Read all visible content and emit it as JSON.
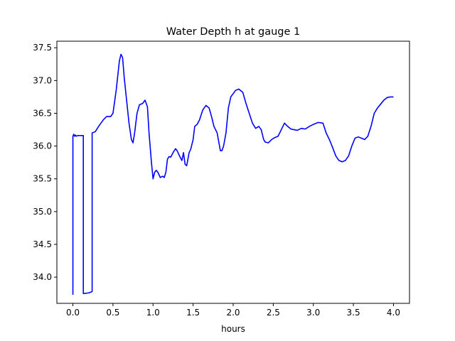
{
  "chart_data": {
    "type": "line",
    "title": "Water Depth h at gauge 1",
    "xlabel": "hours",
    "ylabel": "",
    "xlim": [
      -0.2,
      4.2
    ],
    "ylim": [
      33.6,
      37.6
    ],
    "xticks": [
      0.0,
      0.5,
      1.0,
      1.5,
      2.0,
      2.5,
      3.0,
      3.5,
      4.0
    ],
    "xtick_labels": [
      "0.0",
      "0.5",
      "1.0",
      "1.5",
      "2.0",
      "2.5",
      "3.0",
      "3.5",
      "4.0"
    ],
    "yticks": [
      34.0,
      34.5,
      35.0,
      35.5,
      36.0,
      36.5,
      37.0,
      37.5
    ],
    "ytick_labels": [
      "34.0",
      "34.5",
      "35.0",
      "35.5",
      "36.0",
      "36.5",
      "37.0",
      "37.5"
    ],
    "grid": false,
    "series": [
      {
        "color": "#0000ff",
        "x": [
          0.0,
          0.0,
          0.01,
          0.02,
          0.03,
          0.04,
          0.06,
          0.1,
          0.13,
          0.13,
          0.2,
          0.24,
          0.24,
          0.28,
          0.32,
          0.38,
          0.42,
          0.47,
          0.5,
          0.54,
          0.58,
          0.6,
          0.62,
          0.64,
          0.67,
          0.7,
          0.73,
          0.75,
          0.77,
          0.8,
          0.83,
          0.87,
          0.9,
          0.93,
          0.95,
          0.98,
          1.0,
          1.02,
          1.04,
          1.06,
          1.09,
          1.12,
          1.14,
          1.16,
          1.18,
          1.2,
          1.22,
          1.25,
          1.28,
          1.3,
          1.33,
          1.36,
          1.38,
          1.4,
          1.42,
          1.45,
          1.47,
          1.5,
          1.52,
          1.55,
          1.58,
          1.62,
          1.66,
          1.7,
          1.73,
          1.76,
          1.8,
          1.84,
          1.86,
          1.88,
          1.91,
          1.94,
          1.97,
          2.0,
          2.03,
          2.07,
          2.12,
          2.16,
          2.2,
          2.24,
          2.28,
          2.32,
          2.35,
          2.38,
          2.4,
          2.44,
          2.48,
          2.52,
          2.56,
          2.6,
          2.64,
          2.68,
          2.72,
          2.76,
          2.8,
          2.85,
          2.9,
          2.95,
          3.0,
          3.06,
          3.12,
          3.16,
          3.2,
          3.24,
          3.28,
          3.32,
          3.36,
          3.4,
          3.44,
          3.48,
          3.52,
          3.56,
          3.6,
          3.64,
          3.68,
          3.72,
          3.76,
          3.8,
          3.84,
          3.88,
          3.92,
          3.96,
          4.0
        ],
        "y": [
          33.73,
          36.15,
          36.18,
          36.15,
          36.17,
          36.15,
          36.16,
          36.16,
          36.16,
          33.75,
          33.76,
          33.78,
          36.2,
          36.22,
          36.3,
          36.4,
          36.45,
          36.45,
          36.5,
          36.85,
          37.3,
          37.4,
          37.35,
          37.05,
          36.7,
          36.35,
          36.1,
          36.05,
          36.2,
          36.5,
          36.63,
          36.65,
          36.7,
          36.6,
          36.2,
          35.75,
          35.5,
          35.6,
          35.63,
          35.6,
          35.52,
          35.54,
          35.52,
          35.6,
          35.8,
          35.84,
          35.83,
          35.9,
          35.96,
          35.93,
          35.85,
          35.78,
          35.9,
          35.72,
          35.7,
          35.9,
          35.95,
          36.1,
          36.3,
          36.33,
          36.4,
          36.55,
          36.62,
          36.58,
          36.45,
          36.3,
          36.2,
          35.93,
          35.93,
          36.0,
          36.2,
          36.58,
          36.75,
          36.8,
          36.85,
          36.87,
          36.82,
          36.65,
          36.5,
          36.35,
          36.27,
          36.3,
          36.25,
          36.1,
          36.06,
          36.05,
          36.1,
          36.13,
          36.15,
          36.25,
          36.35,
          36.3,
          36.26,
          36.25,
          36.24,
          36.27,
          36.26,
          36.3,
          36.33,
          36.36,
          36.35,
          36.2,
          36.1,
          35.98,
          35.85,
          35.78,
          35.76,
          35.78,
          35.85,
          36.0,
          36.12,
          36.14,
          36.12,
          36.1,
          36.15,
          36.3,
          36.5,
          36.58,
          36.64,
          36.7,
          36.74,
          36.75,
          36.75
        ]
      }
    ]
  }
}
